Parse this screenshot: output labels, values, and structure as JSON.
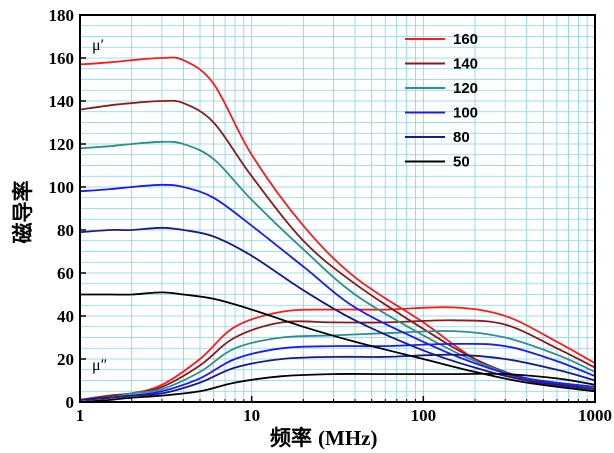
{
  "chart_data": {
    "type": "line",
    "xscale": "log",
    "xlim": [
      1,
      1000
    ],
    "ylim": [
      0,
      180
    ],
    "xticks": [
      1,
      10,
      100,
      1000
    ],
    "xtick_labels": [
      "1",
      "10",
      "100",
      "1000"
    ],
    "yticks": [
      0,
      20,
      40,
      60,
      80,
      100,
      120,
      140,
      160,
      180
    ],
    "ytick_labels": [
      "0",
      "20",
      "40",
      "60",
      "80",
      "100",
      "120",
      "140",
      "160",
      "180"
    ],
    "xlabel_cn": "频率",
    "xlabel_unit": "(MHz)",
    "ylabel": "磁导率",
    "grid": true,
    "grid_color": "#7fd4e6",
    "legend_position": "top-right",
    "annotations": {
      "mu_prime": "μ′",
      "mu_double_prime": "μ″"
    },
    "series": [
      {
        "name": "160",
        "color": "#ff1a1a",
        "mu_prime": [
          [
            1,
            157
          ],
          [
            1.5,
            158
          ],
          [
            2,
            159
          ],
          [
            3,
            160
          ],
          [
            4,
            159
          ],
          [
            6,
            148
          ],
          [
            10,
            115
          ],
          [
            20,
            82
          ],
          [
            40,
            58
          ],
          [
            100,
            37
          ],
          [
            200,
            20
          ],
          [
            400,
            10
          ],
          [
            1000,
            5
          ]
        ],
        "mu_double_prime": [
          [
            1,
            1
          ],
          [
            1.5,
            3
          ],
          [
            2,
            4
          ],
          [
            3,
            8
          ],
          [
            5,
            20
          ],
          [
            8,
            35
          ],
          [
            15,
            42
          ],
          [
            30,
            43
          ],
          [
            60,
            43
          ],
          [
            150,
            44
          ],
          [
            300,
            40
          ],
          [
            600,
            28
          ],
          [
            1000,
            18
          ]
        ]
      },
      {
        "name": "140",
        "color": "#8b1a1a",
        "mu_prime": [
          [
            1,
            136
          ],
          [
            1.5,
            138
          ],
          [
            2,
            139
          ],
          [
            3,
            140
          ],
          [
            4,
            139
          ],
          [
            6,
            130
          ],
          [
            10,
            105
          ],
          [
            20,
            75
          ],
          [
            40,
            55
          ],
          [
            100,
            34
          ],
          [
            200,
            20
          ],
          [
            400,
            11
          ],
          [
            1000,
            6
          ]
        ],
        "mu_double_prime": [
          [
            1,
            1
          ],
          [
            1.5,
            3
          ],
          [
            2,
            4
          ],
          [
            3,
            7
          ],
          [
            5,
            17
          ],
          [
            8,
            30
          ],
          [
            15,
            37
          ],
          [
            30,
            37
          ],
          [
            60,
            37
          ],
          [
            150,
            38
          ],
          [
            300,
            36
          ],
          [
            600,
            25
          ],
          [
            1000,
            16
          ]
        ]
      },
      {
        "name": "120",
        "color": "#2a9090",
        "mu_prime": [
          [
            1,
            118
          ],
          [
            1.5,
            119
          ],
          [
            2,
            120
          ],
          [
            3,
            121
          ],
          [
            4,
            120
          ],
          [
            6,
            113
          ],
          [
            10,
            94
          ],
          [
            20,
            71
          ],
          [
            40,
            50
          ],
          [
            100,
            31
          ],
          [
            200,
            19
          ],
          [
            400,
            11
          ],
          [
            1000,
            7
          ]
        ],
        "mu_double_prime": [
          [
            1,
            1
          ],
          [
            1.5,
            2
          ],
          [
            2,
            4
          ],
          [
            3,
            6
          ],
          [
            5,
            14
          ],
          [
            8,
            25
          ],
          [
            15,
            30
          ],
          [
            30,
            31
          ],
          [
            60,
            32
          ],
          [
            150,
            33
          ],
          [
            300,
            30
          ],
          [
            600,
            22
          ],
          [
            1000,
            14
          ]
        ]
      },
      {
        "name": "100",
        "color": "#1a1aff",
        "mu_prime": [
          [
            1,
            98
          ],
          [
            1.5,
            99
          ],
          [
            2,
            100
          ],
          [
            3,
            101
          ],
          [
            4,
            100
          ],
          [
            6,
            95
          ],
          [
            10,
            82
          ],
          [
            20,
            63
          ],
          [
            40,
            44
          ],
          [
            100,
            28
          ],
          [
            200,
            18
          ],
          [
            400,
            11
          ],
          [
            1000,
            7
          ]
        ],
        "mu_double_prime": [
          [
            1,
            1
          ],
          [
            1.5,
            2
          ],
          [
            2,
            3
          ],
          [
            3,
            5
          ],
          [
            5,
            11
          ],
          [
            8,
            20
          ],
          [
            15,
            25
          ],
          [
            30,
            26
          ],
          [
            60,
            26
          ],
          [
            150,
            27
          ],
          [
            300,
            26
          ],
          [
            600,
            19
          ],
          [
            1000,
            12
          ]
        ]
      },
      {
        "name": "80",
        "color": "#1a1a8b",
        "mu_prime": [
          [
            1,
            79
          ],
          [
            1.5,
            80
          ],
          [
            2,
            80
          ],
          [
            3,
            81
          ],
          [
            4,
            80
          ],
          [
            6,
            77
          ],
          [
            10,
            68
          ],
          [
            20,
            52
          ],
          [
            40,
            38
          ],
          [
            100,
            24
          ],
          [
            200,
            16
          ],
          [
            400,
            10
          ],
          [
            1000,
            6
          ]
        ],
        "mu_double_prime": [
          [
            1,
            1
          ],
          [
            1.5,
            2
          ],
          [
            2,
            3
          ],
          [
            3,
            4
          ],
          [
            5,
            9
          ],
          [
            8,
            16
          ],
          [
            15,
            20
          ],
          [
            30,
            21
          ],
          [
            60,
            21
          ],
          [
            150,
            22
          ],
          [
            300,
            20
          ],
          [
            600,
            15
          ],
          [
            1000,
            10
          ]
        ]
      },
      {
        "name": "50",
        "color": "#000000",
        "mu_prime": [
          [
            1,
            50
          ],
          [
            1.5,
            50
          ],
          [
            2,
            50
          ],
          [
            3,
            51
          ],
          [
            4,
            50
          ],
          [
            6,
            48
          ],
          [
            10,
            43
          ],
          [
            20,
            35
          ],
          [
            40,
            28
          ],
          [
            100,
            20
          ],
          [
            200,
            14
          ],
          [
            400,
            9
          ],
          [
            1000,
            5
          ]
        ],
        "mu_double_prime": [
          [
            1,
            0
          ],
          [
            1.5,
            1
          ],
          [
            2,
            2
          ],
          [
            3,
            3
          ],
          [
            5,
            5
          ],
          [
            8,
            9
          ],
          [
            15,
            12
          ],
          [
            30,
            13
          ],
          [
            60,
            13
          ],
          [
            150,
            13
          ],
          [
            300,
            13
          ],
          [
            600,
            11
          ],
          [
            1000,
            8
          ]
        ]
      }
    ]
  }
}
